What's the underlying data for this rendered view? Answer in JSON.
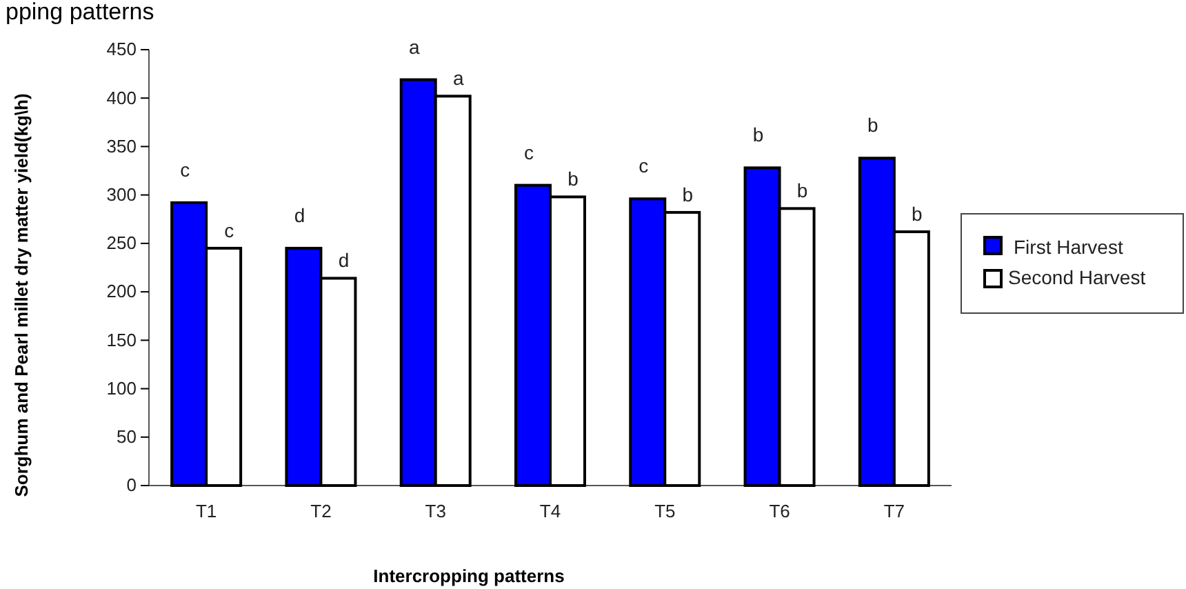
{
  "chart_data": {
    "type": "bar",
    "title": "pping  patterns",
    "xlabel": "Intercropping patterns",
    "ylabel": "Sorghum and Pearl millet dry matter yield(kg\\h)",
    "categories": [
      "T1",
      "T2",
      "T3",
      "T4",
      "T5",
      "T6",
      "T7"
    ],
    "series": [
      {
        "name": "First Harvest",
        "color": "#0000ff",
        "values": [
          292,
          245,
          419,
          310,
          296,
          328,
          338
        ],
        "value_labels": [
          "c",
          "d",
          "a",
          "c",
          "c",
          "b",
          "b"
        ]
      },
      {
        "name": "Second Harvest",
        "color": "#ffffff",
        "values": [
          245,
          214,
          402,
          298,
          282,
          286,
          262
        ],
        "value_labels": [
          "c",
          "d",
          "a",
          "b",
          "b",
          "b",
          "b"
        ]
      }
    ],
    "ylim": [
      0,
      450
    ],
    "yticks": [
      0,
      50,
      100,
      150,
      200,
      250,
      300,
      350,
      400,
      450
    ],
    "grid": false,
    "legend": "right"
  }
}
